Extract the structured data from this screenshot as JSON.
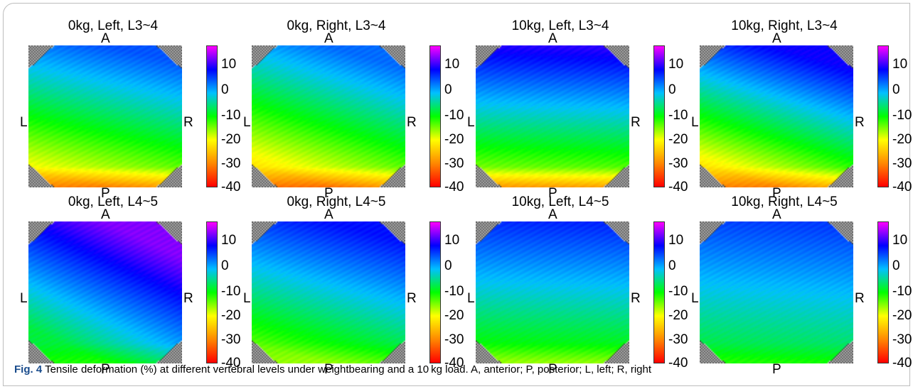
{
  "figure": {
    "caption_label": "Fig. 4",
    "caption_text": "Tensile deformation (%) at different vertebral levels under weightbearing and a 10 kg load. A, anterior; P, posterior; L, left; R, right"
  },
  "chart_data": {
    "type": "heatmap",
    "orientation_labels": {
      "top": "A",
      "bottom": "P",
      "left": "L",
      "right": "R"
    },
    "colorbar": {
      "ticks": [
        "10",
        "0",
        "-10",
        "-20",
        "-30",
        "-40"
      ],
      "range": [
        -40,
        10
      ],
      "colors": [
        "#ff0000",
        "#ff8800",
        "#ffff00",
        "#00ff00",
        "#00c0ff",
        "#0000ff",
        "#ff00ff"
      ]
    },
    "panels": [
      {
        "title": "0kg, Left, L3~4",
        "top_value": -2,
        "bottom_value": -24,
        "bottom_edge_value": -32,
        "tilt": 0.25,
        "color_range": [
          -40,
          10
        ]
      },
      {
        "title": "0kg, Right, L3~4",
        "top_value": -3,
        "bottom_value": -25,
        "bottom_edge_value": -33,
        "tilt": 0.35,
        "color_range": [
          -40,
          10
        ]
      },
      {
        "title": "10kg, Left, L3~4",
        "top_value": 3,
        "bottom_value": -22,
        "bottom_edge_value": -30,
        "tilt": 0.05,
        "color_range": [
          -40,
          10
        ]
      },
      {
        "title": "10kg, Right, L3~4",
        "top_value": 2,
        "bottom_value": -25,
        "bottom_edge_value": -32,
        "tilt": 0.35,
        "color_range": [
          -40,
          10
        ]
      },
      {
        "title": "0kg, Left, L4~5",
        "top_value": 6,
        "bottom_value": -13,
        "bottom_edge_value": -16,
        "tilt": 0.55,
        "color_range": [
          -40,
          10
        ]
      },
      {
        "title": "0kg, Right, L4~5",
        "top_value": 1,
        "bottom_value": -18,
        "bottom_edge_value": -20,
        "tilt": 0.3,
        "color_range": [
          -40,
          10
        ]
      },
      {
        "title": "10kg, Left, L4~5",
        "top_value": 0,
        "bottom_value": -17,
        "bottom_edge_value": -20,
        "tilt": 0.05,
        "color_range": [
          -40,
          10
        ]
      },
      {
        "title": "10kg, Right, L4~5",
        "top_value": -1,
        "bottom_value": -14,
        "bottom_edge_value": -16,
        "tilt": 0.1,
        "color_range": [
          -40,
          10
        ]
      }
    ]
  }
}
